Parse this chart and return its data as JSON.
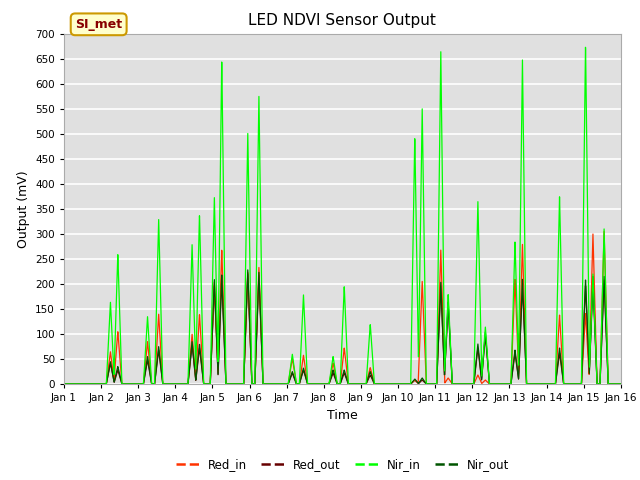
{
  "title": "LED NDVI Sensor Output",
  "xlabel": "Time",
  "ylabel": "Output (mV)",
  "ylim": [
    0,
    700
  ],
  "xlim": [
    0,
    15
  ],
  "plot_bg_color": "#e0e0e0",
  "fig_bg_color": "#ffffff",
  "grid_color": "#ffffff",
  "annotation_text": "SI_met",
  "annotation_bg": "#ffffcc",
  "annotation_border": "#cc9900",
  "annotation_text_color": "#880000",
  "line_colors": {
    "Red_in": "#ff3300",
    "Red_out": "#660000",
    "Nir_in": "#00ff00",
    "Nir_out": "#005500"
  },
  "xtick_labels": [
    "Jan 1",
    "Jan 2",
    "Jan 3",
    "Jan 4",
    "Jan 5",
    "Jan 6",
    "Jan 7",
    "Jan 8",
    "Jan 9",
    "Jan 10",
    "Jan 11",
    "Jan 12",
    "Jan 13",
    "Jan 14",
    "Jan 15",
    "Jan 16"
  ],
  "xtick_positions": [
    0,
    1,
    2,
    3,
    4,
    5,
    6,
    7,
    8,
    9,
    10,
    11,
    12,
    13,
    14,
    15
  ],
  "ytick_positions": [
    0,
    50,
    100,
    150,
    200,
    250,
    300,
    350,
    400,
    450,
    500,
    550,
    600,
    650,
    700
  ],
  "title_fontsize": 11,
  "axis_label_fontsize": 9,
  "tick_fontsize": 7.5
}
